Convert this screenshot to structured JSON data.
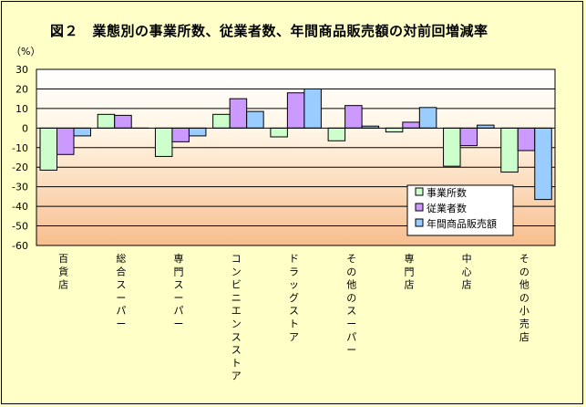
{
  "title": "図２　業態別の事業所数、従業者数、年間商品販売額の対前回増減率",
  "unit_label": "（%）",
  "chart_data": {
    "type": "bar",
    "title": "図２　業態別の事業所数、従業者数、年間商品販売額の対前回増減率",
    "ylabel": "（%）",
    "ylim": [
      -60,
      30
    ],
    "yticks": [
      30,
      20,
      10,
      0,
      -10,
      -20,
      -30,
      -40,
      -50,
      -60
    ],
    "categories": [
      "百貨店",
      "総合スーパー",
      "専門スーパー",
      "コンビニエンスストア",
      "ドラッグストア",
      "その他のスーパー",
      "専門店",
      "中心店",
      "その他の小売店"
    ],
    "category_display": [
      "百\n貨\n店",
      "総\n合\nス\nー\nパ\nー",
      "専\n門\nス\nー\nパ\nー",
      "コ\nン\nビ\nニ\nエ\nン\nス\nス\nト\nア",
      "ド\nラ\nッ\nグ\nス\nト\nア",
      "そ\nの\n他\nの\nス\nー\nパ\nー",
      "専\n門\n店",
      "中\n心\n店",
      "そ\nの\n他\nの\n小\n売\n店"
    ],
    "series": [
      {
        "name": "事業所数",
        "color": "#CCFFCC",
        "values": [
          -21.5,
          7,
          -14.5,
          7,
          -4.5,
          -6.5,
          -2,
          -19.5,
          -22.5
        ]
      },
      {
        "name": "従業者数",
        "color": "#CC99FF",
        "values": [
          -13.5,
          6.5,
          -7,
          15,
          18,
          11.5,
          3,
          -9,
          -11.5
        ]
      },
      {
        "name": "年間商品販売額",
        "color": "#99CCFF",
        "values": [
          -4,
          0,
          -4,
          8.5,
          20,
          1,
          10.5,
          1.5,
          -36.5
        ]
      }
    ],
    "grid": true,
    "legend_position": "lower-right"
  }
}
